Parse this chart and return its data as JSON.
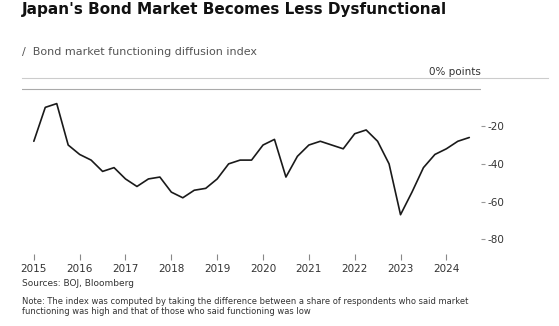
{
  "title": "Japan's Bond Market Becomes Less Dysfunctional",
  "subtitle": "Bond market functioning diffusion index",
  "subtitle_marker": "/",
  "ylabel_right": "0% points",
  "source_text": "Sources: BOJ, Bloomberg",
  "note_text": "Note: The index was computed by taking the difference between a share of respondents who said market\nfunctioning was high and that of those who said functioning was low",
  "line_color": "#1a1a1a",
  "background_color": "#ffffff",
  "x": [
    2015.0,
    2015.25,
    2015.5,
    2015.75,
    2016.0,
    2016.25,
    2016.5,
    2016.75,
    2017.0,
    2017.25,
    2017.5,
    2017.75,
    2018.0,
    2018.25,
    2018.5,
    2018.75,
    2019.0,
    2019.25,
    2019.5,
    2019.75,
    2020.0,
    2020.25,
    2020.5,
    2020.75,
    2021.0,
    2021.25,
    2021.5,
    2021.75,
    2022.0,
    2022.25,
    2022.5,
    2022.75,
    2023.0,
    2023.25,
    2023.5,
    2023.75,
    2024.0,
    2024.25,
    2024.5
  ],
  "y": [
    -28,
    -10,
    -8,
    -30,
    -35,
    -38,
    -44,
    -42,
    -48,
    -52,
    -48,
    -47,
    -55,
    -58,
    -54,
    -53,
    -48,
    -40,
    -38,
    -38,
    -30,
    -27,
    -47,
    -36,
    -30,
    -28,
    -30,
    -32,
    -24,
    -22,
    -28,
    -40,
    -67,
    -55,
    -42,
    -35,
    -32,
    -28,
    -26
  ],
  "xlim": [
    2014.75,
    2024.75
  ],
  "ylim": [
    -88,
    2
  ],
  "xticks": [
    2015,
    2016,
    2017,
    2018,
    2019,
    2020,
    2021,
    2022,
    2023,
    2024
  ],
  "yticks": [
    -80,
    -60,
    -40,
    -20
  ],
  "xtick_labels": [
    "2015",
    "2016",
    "2017",
    "2018",
    "2019",
    "2020",
    "2021",
    "2022",
    "2023",
    "2024"
  ],
  "ytick_labels": [
    "-80",
    "-60",
    "-40",
    "-20"
  ]
}
